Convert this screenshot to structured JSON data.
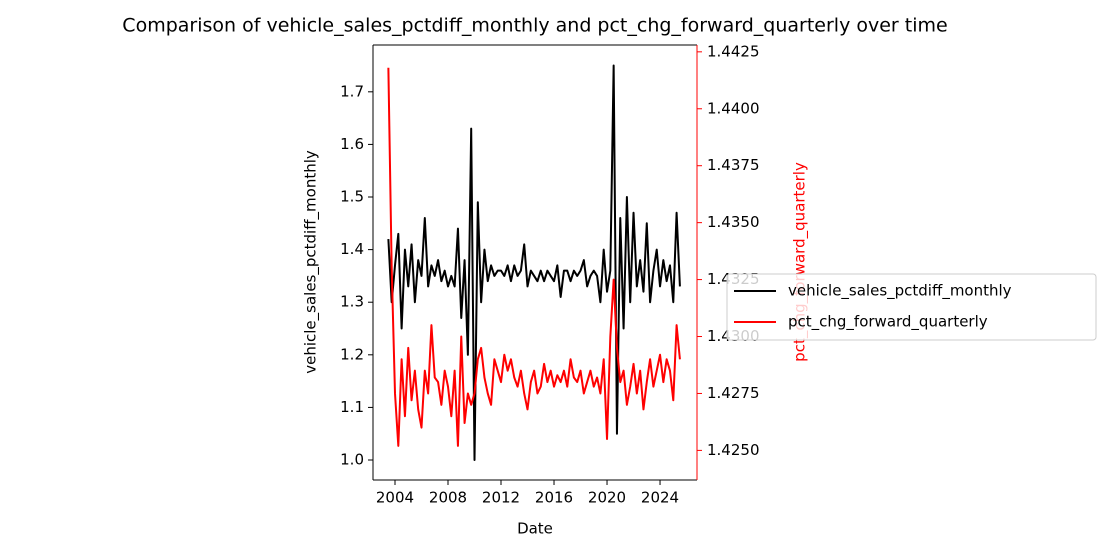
{
  "chart_data": {
    "type": "line",
    "title": "Comparison of vehicle_sales_pctdiff_monthly and pct_chg_forward_quarterly over time",
    "x_label": "Date",
    "y_label": "vehicle_sales_pctdiff_monthly",
    "y2_label": "pct_chg_forward_quarterly",
    "legend": "right",
    "x": [
      2003.5,
      2003.75,
      2004,
      2004.25,
      2004.5,
      2004.75,
      2005,
      2005.25,
      2005.5,
      2005.75,
      2006,
      2006.25,
      2006.5,
      2006.75,
      2007,
      2007.25,
      2007.5,
      2007.75,
      2008,
      2008.25,
      2008.5,
      2008.75,
      2009,
      2009.25,
      2009.5,
      2009.75,
      2010,
      2010.25,
      2010.5,
      2010.75,
      2011,
      2011.25,
      2011.5,
      2011.75,
      2012,
      2012.25,
      2012.5,
      2012.75,
      2013,
      2013.25,
      2013.5,
      2013.75,
      2014,
      2014.25,
      2014.5,
      2014.75,
      2015,
      2015.25,
      2015.5,
      2015.75,
      2016,
      2016.25,
      2016.5,
      2016.75,
      2017,
      2017.25,
      2017.5,
      2017.75,
      2018,
      2018.25,
      2018.5,
      2018.75,
      2019,
      2019.25,
      2019.5,
      2019.75,
      2020,
      2020.25,
      2020.5,
      2020.75,
      2021,
      2021.25,
      2021.5,
      2021.75,
      2022,
      2022.25,
      2022.5,
      2022.75,
      2023,
      2023.25,
      2023.5,
      2023.75,
      2024,
      2024.25,
      2024.5,
      2024.75,
      2025,
      2025.25,
      2025.5
    ],
    "series": [
      {
        "name": "vehicle_sales_pctdiff_monthly",
        "color": "#000000",
        "values": [
          1.42,
          1.3,
          1.37,
          1.43,
          1.25,
          1.4,
          1.33,
          1.41,
          1.3,
          1.38,
          1.35,
          1.46,
          1.33,
          1.37,
          1.35,
          1.38,
          1.34,
          1.36,
          1.33,
          1.35,
          1.33,
          1.44,
          1.27,
          1.38,
          1.2,
          1.63,
          1.0,
          1.49,
          1.3,
          1.4,
          1.34,
          1.37,
          1.35,
          1.36,
          1.36,
          1.35,
          1.37,
          1.34,
          1.37,
          1.35,
          1.36,
          1.41,
          1.33,
          1.36,
          1.35,
          1.34,
          1.36,
          1.34,
          1.36,
          1.35,
          1.34,
          1.37,
          1.31,
          1.36,
          1.36,
          1.34,
          1.36,
          1.35,
          1.36,
          1.38,
          1.33,
          1.35,
          1.36,
          1.35,
          1.3,
          1.4,
          1.32,
          1.36,
          1.75,
          1.05,
          1.46,
          1.25,
          1.5,
          1.3,
          1.47,
          1.33,
          1.38,
          1.32,
          1.45,
          1.3,
          1.36,
          1.4,
          1.33,
          1.38,
          1.34,
          1.37,
          1.3,
          1.47,
          1.33
        ]
      },
      {
        "name": "pct_chg_forward_quarterly",
        "color": "#ff0000",
        "axis": "y2",
        "values": [
          1.4418,
          1.433,
          1.4275,
          1.4252,
          1.429,
          1.4265,
          1.4295,
          1.4272,
          1.4285,
          1.4268,
          1.426,
          1.4285,
          1.4275,
          1.4305,
          1.4282,
          1.428,
          1.427,
          1.4285,
          1.4278,
          1.4265,
          1.4285,
          1.4252,
          1.43,
          1.4262,
          1.4275,
          1.427,
          1.4275,
          1.429,
          1.4295,
          1.4282,
          1.4275,
          1.427,
          1.429,
          1.4285,
          1.428,
          1.4292,
          1.4285,
          1.429,
          1.4282,
          1.4278,
          1.4285,
          1.4275,
          1.4268,
          1.428,
          1.4285,
          1.4275,
          1.4278,
          1.4288,
          1.428,
          1.4285,
          1.4278,
          1.4283,
          1.428,
          1.4285,
          1.4278,
          1.429,
          1.4282,
          1.428,
          1.4285,
          1.4275,
          1.428,
          1.4285,
          1.4278,
          1.4282,
          1.4275,
          1.429,
          1.4255,
          1.43,
          1.4325,
          1.4295,
          1.428,
          1.4285,
          1.427,
          1.4278,
          1.4288,
          1.4275,
          1.4285,
          1.4268,
          1.428,
          1.429,
          1.4278,
          1.4285,
          1.4292,
          1.428,
          1.429,
          1.4285,
          1.4272,
          1.4305,
          1.429
        ]
      }
    ],
    "xlim": [
      2002.34,
      2026.79
    ],
    "xticks": [
      2004,
      2008,
      2012,
      2016,
      2020,
      2024
    ],
    "ylim": [
      0.962,
      1.789
    ],
    "yticks": [
      {
        "value": 1,
        "label": "1.0"
      },
      1.1,
      1.2,
      1.3,
      1.4,
      1.5,
      1.6,
      1.7
    ],
    "y2lim": [
      1.4237,
      1.4428
    ],
    "y2ticks": [
      {
        "value": 1.425,
        "label": "1.4250"
      },
      1.4275,
      {
        "value": 1.43,
        "label": "1.4300"
      },
      1.4325,
      {
        "value": 1.435,
        "label": "1.4350"
      },
      1.4375,
      {
        "value": 1.44,
        "label": "1.4400"
      },
      1.4425
    ]
  }
}
